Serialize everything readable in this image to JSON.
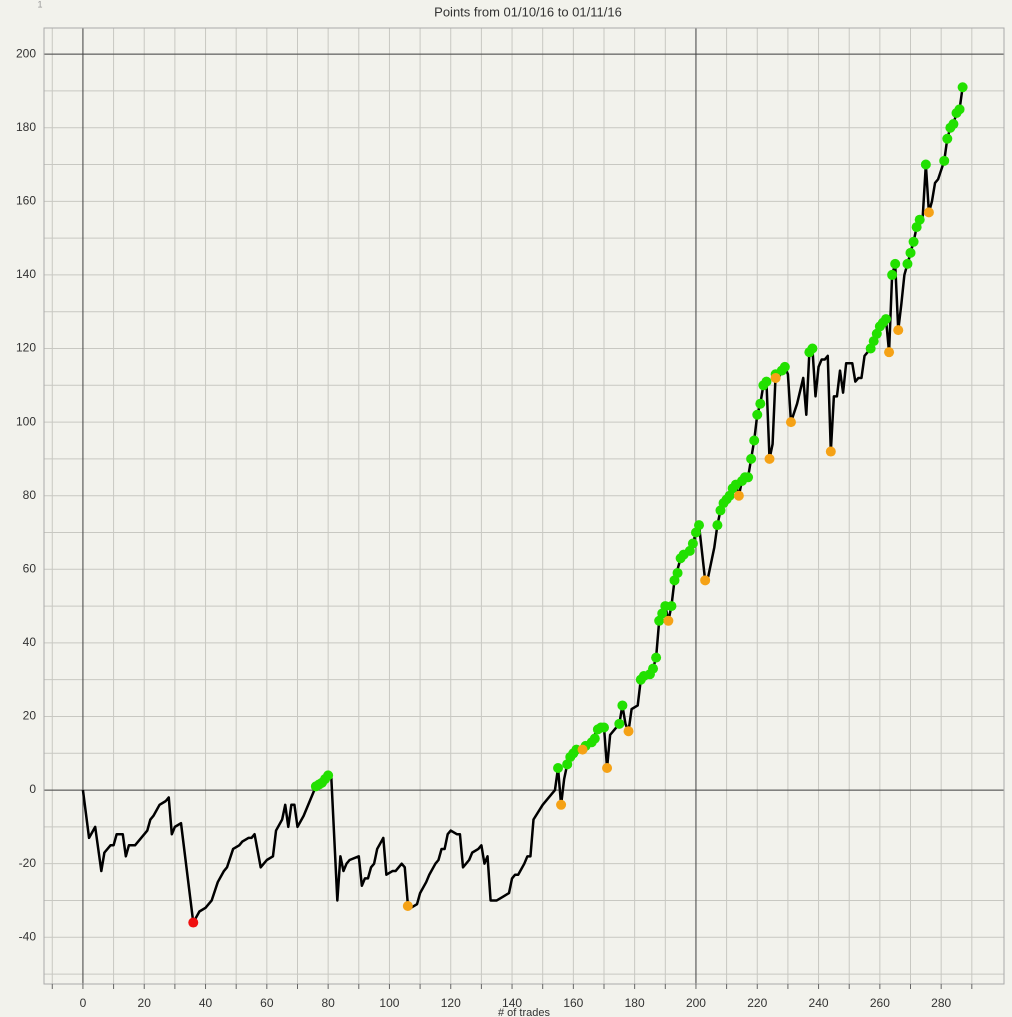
{
  "chart_data": {
    "type": "line",
    "title": "Points from 01/10/16 to 01/11/16",
    "corner_label": "1",
    "xlabel": "# of trades",
    "xlim": [
      -12.7,
      300.5
    ],
    "ylim": [
      -52.7,
      207.1
    ],
    "xticks": [
      0,
      20,
      40,
      60,
      80,
      100,
      120,
      140,
      160,
      180,
      200,
      220,
      240,
      260,
      280
    ],
    "yticks": [
      -40,
      -20,
      0,
      20,
      40,
      60,
      80,
      100,
      120,
      140,
      160,
      180,
      200
    ],
    "xticks_minor": [
      -10,
      10,
      30,
      50,
      70,
      90,
      110,
      130,
      150,
      170,
      190,
      210,
      230,
      250,
      270,
      290
    ],
    "yticks_minor": [
      -50,
      -30,
      -10,
      10,
      30,
      50,
      70,
      90,
      110,
      130,
      150,
      170,
      190
    ],
    "xaxis_lines": [
      0,
      200
    ],
    "yaxis_lines": [
      0,
      200
    ],
    "grid": true,
    "series": [
      {
        "mode": "line",
        "color": "#000000",
        "x": [
          0,
          2,
          4,
          6,
          7,
          9,
          10,
          11,
          13,
          14,
          15,
          17,
          19,
          21,
          22,
          23,
          25,
          27,
          28,
          29,
          30,
          32,
          36,
          38,
          40,
          42,
          44,
          46,
          47,
          49,
          51,
          52,
          54,
          55,
          56,
          58,
          60,
          62,
          63,
          65,
          66,
          67,
          68,
          69,
          70,
          72,
          74,
          76,
          77,
          78,
          79,
          80,
          81,
          83,
          84,
          85,
          86,
          87,
          90,
          91,
          92,
          93,
          94,
          95,
          96,
          98,
          99,
          101,
          102,
          104,
          105,
          106,
          107,
          109,
          110,
          112,
          113,
          115,
          116,
          117,
          118,
          119,
          120,
          122,
          123,
          124,
          126,
          127,
          129,
          130,
          131,
          132,
          133,
          135,
          137,
          139,
          140,
          141,
          142,
          144,
          145,
          146,
          147,
          150,
          154,
          155,
          156,
          157,
          158,
          159,
          160,
          161,
          163,
          164,
          166,
          167,
          168,
          169,
          170,
          171,
          172,
          173,
          175,
          176,
          177,
          178,
          179,
          181,
          182,
          183,
          185,
          186,
          187,
          188,
          189,
          190,
          191,
          192,
          193,
          194,
          195,
          196,
          198,
          199,
          200,
          201,
          203,
          204,
          206,
          207,
          208,
          209,
          210,
          211,
          212,
          213,
          214,
          215,
          216,
          217,
          218,
          219,
          220,
          221,
          222,
          223,
          224,
          225,
          226,
          227,
          228,
          229,
          230,
          231,
          233,
          235,
          236,
          237,
          238,
          239,
          240,
          241,
          242,
          243,
          244,
          245,
          246,
          247,
          248,
          249,
          250,
          251,
          252,
          253,
          254,
          255,
          256,
          257,
          258,
          259,
          260,
          261,
          262,
          263,
          264,
          265,
          266,
          267,
          268,
          269,
          270,
          271,
          272,
          273,
          274,
          275,
          276,
          277,
          278,
          279,
          281,
          282,
          283,
          284,
          285,
          286,
          287
        ],
        "values": [
          0,
          -13,
          -10,
          -22,
          -17,
          -15,
          -15,
          -12,
          -12,
          -18,
          -15,
          -15,
          -13,
          -11,
          -8,
          -7,
          -4,
          -3,
          -2,
          -12,
          -10,
          -9,
          -36,
          -33,
          -32,
          -30,
          -25,
          -22,
          -21,
          -16,
          -15,
          -14,
          -13,
          -13,
          -12,
          -21,
          -19,
          -18,
          -11,
          -8,
          -4,
          -10,
          -4,
          -4,
          -10,
          -7,
          -3,
          1,
          1.5,
          2,
          3,
          4,
          4,
          -30,
          -18,
          -22,
          -20,
          -19,
          -18,
          -26,
          -24,
          -24,
          -21,
          -20,
          -16,
          -13,
          -23,
          -22,
          -22,
          -20,
          -21,
          -31,
          -32,
          -31,
          -28,
          -25,
          -23,
          -20,
          -19,
          -16,
          -16,
          -12,
          -11,
          -12,
          -12,
          -21,
          -19,
          -17,
          -16,
          -15,
          -20,
          -18,
          -30,
          -30,
          -29,
          -28,
          -24,
          -23,
          -23,
          -20,
          -18,
          -18,
          -8,
          -4,
          0,
          6,
          -4,
          3,
          7,
          9,
          10,
          11,
          11,
          12,
          13,
          15,
          17,
          17,
          17,
          6,
          15,
          16,
          18,
          23,
          18,
          16,
          22,
          23,
          30,
          31,
          32,
          33,
          36,
          46,
          48,
          50,
          46,
          50,
          57,
          60,
          63,
          64,
          65,
          67,
          70,
          72,
          57,
          58,
          66,
          72,
          76,
          78,
          79,
          80,
          82,
          83,
          80,
          84,
          85,
          85,
          90,
          95,
          102,
          105,
          110,
          111,
          90,
          94,
          113,
          112,
          114,
          115,
          113,
          100,
          105,
          112,
          102,
          119,
          120,
          107,
          115,
          117,
          117,
          118,
          92,
          107,
          107,
          114,
          108,
          116,
          116,
          116,
          111,
          112,
          112,
          118,
          119,
          120,
          122,
          124,
          126,
          127,
          128,
          119,
          140,
          143,
          125,
          132,
          140,
          143,
          146,
          149,
          153,
          155,
          156,
          170,
          157,
          160,
          165,
          166,
          171,
          177,
          180,
          181,
          184,
          185,
          191
        ]
      },
      {
        "mode": "markers",
        "color": "#22e000",
        "x": [
          76,
          77,
          78,
          79,
          80,
          155,
          158,
          159,
          160,
          161,
          164,
          166,
          167,
          168,
          169,
          170,
          175,
          176,
          182,
          183,
          185,
          186,
          187,
          188,
          189,
          190,
          192,
          193,
          194,
          195,
          196,
          198,
          199,
          200,
          201,
          207,
          208,
          209,
          210,
          211,
          212,
          213,
          215,
          216,
          217,
          218,
          219,
          220,
          221,
          222,
          223,
          226,
          228,
          229,
          237,
          238,
          257,
          258,
          259,
          260,
          261,
          262,
          264,
          265,
          269,
          270,
          271,
          272,
          273,
          275,
          281,
          282,
          283,
          284,
          285,
          286,
          287
        ],
        "values": [
          1,
          1.5,
          2,
          3,
          4,
          6,
          7,
          9,
          10,
          11,
          12,
          13,
          14,
          16.5,
          17,
          17,
          18,
          23,
          30,
          31,
          31.5,
          33,
          36,
          46,
          48,
          50,
          50,
          57,
          59,
          63,
          64,
          65,
          67,
          70,
          72,
          72,
          76,
          78,
          79,
          80,
          82,
          83,
          84,
          85,
          85,
          90,
          95,
          102,
          105,
          110,
          111,
          113,
          114,
          115,
          119,
          120,
          120,
          122,
          124,
          126,
          127,
          128,
          140,
          143,
          143,
          146,
          149,
          153,
          155,
          170,
          171,
          177,
          180,
          181,
          184,
          185,
          191
        ]
      },
      {
        "mode": "markers",
        "color": "#f5a216",
        "x": [
          106,
          156,
          163,
          171,
          178,
          191,
          203,
          214,
          224,
          226,
          231,
          244,
          263,
          266,
          276
        ],
        "values": [
          -31.5,
          -4,
          11,
          6,
          16,
          46,
          57,
          80,
          90,
          112,
          100,
          92,
          119,
          125,
          157
        ]
      },
      {
        "mode": "markers",
        "color": "#f01010",
        "x": [
          36
        ],
        "values": [
          -36
        ]
      }
    ]
  }
}
